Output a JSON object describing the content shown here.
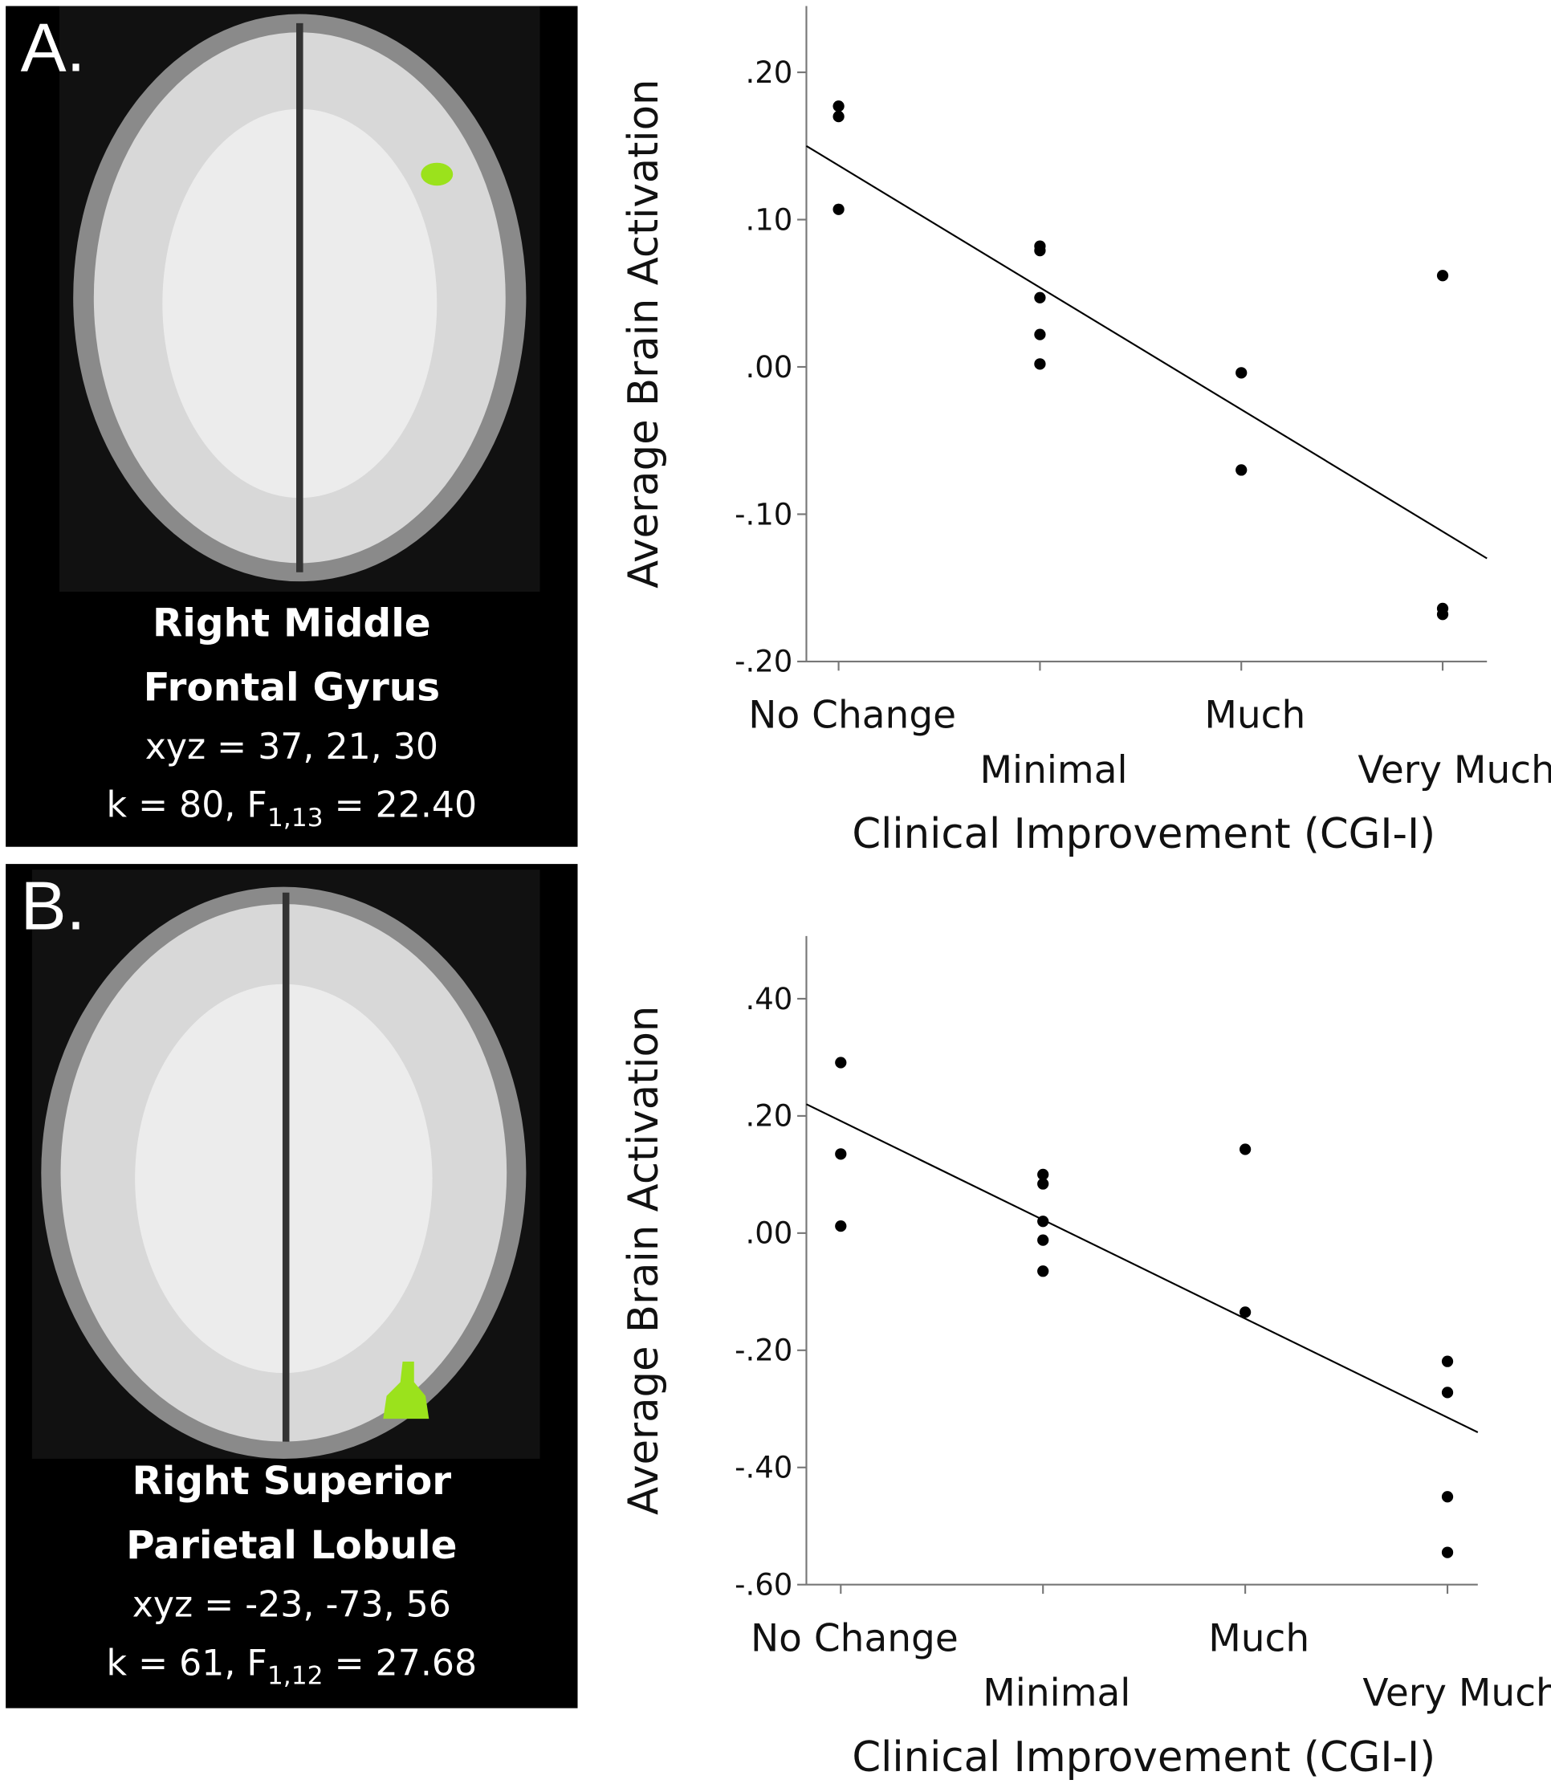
{
  "chart_data": [
    {
      "type": "scatter",
      "panel_label": "A.",
      "region": [
        "Right Middle",
        "Frontal Gyrus"
      ],
      "coords": "xyz = 37, 21, 30",
      "stats": [
        "k = 80, F",
        "1,13",
        " = 22.40"
      ],
      "xlabel": "Clinical Improvement (CGI-I)",
      "ylabel": "Average Brain Activation",
      "color": "#000000",
      "x": [
        1,
        1,
        1,
        2,
        2,
        2,
        2,
        2,
        3,
        3,
        4,
        4,
        4
      ],
      "y": [
        0.177,
        0.17,
        0.107,
        0.082,
        0.079,
        0.047,
        0.022,
        0.002,
        -0.004,
        -0.07,
        0.062,
        -0.164,
        -0.168
      ],
      "fit": {
        "x": [
          0.84,
          4.22
        ],
        "y": [
          0.15,
          -0.13
        ]
      },
      "xlim": [
        0.84,
        4.22
      ],
      "ylim": [
        -0.2,
        0.245
      ],
      "xticks": [
        {
          "value": 1,
          "label": "No Change"
        },
        {
          "value": 2,
          "label": "Minimal"
        },
        {
          "value": 3,
          "label": "Much"
        },
        {
          "value": 4,
          "label": "Very Much"
        }
      ],
      "yticks": [
        {
          "value": 0.2,
          "label": ".20"
        },
        {
          "value": 0.1,
          "label": ".10"
        },
        {
          "value": 0,
          "label": ".00"
        },
        {
          "value": -0.1,
          "label": "-.10"
        },
        {
          "value": -0.2,
          "label": "-.20"
        }
      ]
    },
    {
      "type": "scatter",
      "panel_label": "B.",
      "region": [
        "Right Superior",
        "Parietal Lobule"
      ],
      "coords": "xyz = -23, -73, 56",
      "stats": [
        "k = 61, F",
        "1,12",
        " = 27.68"
      ],
      "xlabel": "Clinical Improvement (CGI-I)",
      "ylabel": "Average Brain Activation",
      "color": "#000000",
      "x": [
        1,
        1,
        1,
        2,
        2,
        2,
        2,
        2,
        3,
        3,
        4,
        4,
        4,
        4
      ],
      "y": [
        0.291,
        0.135,
        0.012,
        0.1,
        0.084,
        0.02,
        -0.012,
        -0.065,
        0.143,
        -0.135,
        -0.219,
        -0.272,
        -0.45,
        -0.545
      ],
      "fit": {
        "x": [
          0.83,
          4.15
        ],
        "y": [
          0.22,
          -0.34
        ]
      },
      "xlim": [
        0.83,
        4.15
      ],
      "ylim": [
        -0.6,
        0.507
      ],
      "xticks": [
        {
          "value": 1,
          "label": "No Change"
        },
        {
          "value": 2,
          "label": "Minimal"
        },
        {
          "value": 3,
          "label": "Much"
        },
        {
          "value": 4,
          "label": "Very Much"
        }
      ],
      "yticks": [
        {
          "value": 0.4,
          "label": ".40"
        },
        {
          "value": 0.2,
          "label": ".20"
        },
        {
          "value": 0,
          "label": ".00"
        },
        {
          "value": -0.2,
          "label": "-.20"
        },
        {
          "value": -0.4,
          "label": "-.40"
        },
        {
          "value": -0.6,
          "label": "-.60"
        }
      ]
    }
  ]
}
